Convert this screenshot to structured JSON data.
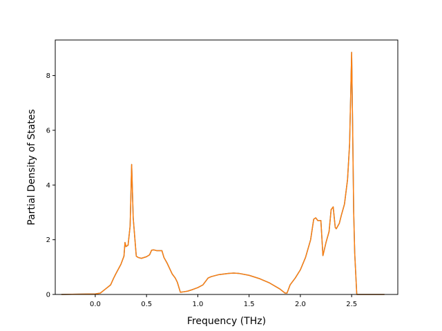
{
  "chart_data": {
    "type": "line",
    "title": "",
    "xlabel": "Frequency (THz)",
    "ylabel": "Partial Density of States",
    "xlim": [
      -0.39,
      2.95
    ],
    "ylim": [
      0,
      9.3
    ],
    "xticks": [
      0.0,
      0.5,
      1.0,
      1.5,
      2.0,
      2.5
    ],
    "xtick_labels": [
      "0.0",
      "0.5",
      "1.0",
      "1.5",
      "2.0",
      "2.5"
    ],
    "yticks": [
      0,
      2,
      4,
      6,
      8
    ],
    "ytick_labels": [
      "0",
      "2",
      "4",
      "6",
      "8"
    ],
    "grid": false,
    "legend": null,
    "series": [
      {
        "color": "#1f77b4",
        "x": [
          -0.33,
          0.0,
          0.05,
          0.1,
          0.15,
          0.18,
          0.2,
          0.25,
          0.28,
          0.29,
          0.3,
          0.32,
          0.34,
          0.355,
          0.37,
          0.4,
          0.42,
          0.45,
          0.5,
          0.53,
          0.55,
          0.57,
          0.6,
          0.65,
          0.67,
          0.7,
          0.75,
          0.78,
          0.8,
          0.83,
          0.85,
          0.9,
          0.95,
          1.0,
          1.05,
          1.08,
          1.1,
          1.13,
          1.2,
          1.3,
          1.35,
          1.4,
          1.5,
          1.6,
          1.7,
          1.8,
          1.85,
          1.87,
          1.9,
          1.95,
          2.0,
          2.05,
          2.1,
          2.13,
          2.15,
          2.17,
          2.2,
          2.22,
          2.25,
          2.28,
          2.3,
          2.32,
          2.34,
          2.35,
          2.38,
          2.4,
          2.43,
          2.46,
          2.48,
          2.5,
          2.51,
          2.52,
          2.53,
          2.55,
          2.57,
          2.62,
          2.82
        ],
        "y": [
          0.0,
          0.02,
          0.05,
          0.2,
          0.35,
          0.6,
          0.75,
          1.1,
          1.4,
          1.9,
          1.75,
          1.8,
          2.5,
          4.75,
          2.8,
          1.4,
          1.35,
          1.32,
          1.38,
          1.45,
          1.62,
          1.63,
          1.6,
          1.6,
          1.35,
          1.15,
          0.75,
          0.6,
          0.45,
          0.08,
          0.09,
          0.12,
          0.18,
          0.25,
          0.35,
          0.5,
          0.6,
          0.65,
          0.72,
          0.77,
          0.78,
          0.77,
          0.7,
          0.58,
          0.42,
          0.2,
          0.05,
          0.05,
          0.35,
          0.6,
          0.9,
          1.35,
          2.0,
          2.75,
          2.8,
          2.7,
          2.7,
          1.42,
          1.9,
          2.3,
          3.1,
          3.2,
          2.45,
          2.4,
          2.6,
          2.9,
          3.3,
          4.2,
          5.5,
          8.85,
          6.0,
          3.0,
          1.5,
          0.0,
          0.0,
          0.0,
          0.0
        ]
      },
      {
        "color": "#ff7f0e",
        "x": [
          -0.33,
          0.0,
          0.05,
          0.1,
          0.15,
          0.18,
          0.2,
          0.25,
          0.28,
          0.29,
          0.3,
          0.32,
          0.34,
          0.355,
          0.37,
          0.4,
          0.42,
          0.45,
          0.5,
          0.53,
          0.55,
          0.57,
          0.6,
          0.65,
          0.67,
          0.7,
          0.75,
          0.78,
          0.8,
          0.83,
          0.85,
          0.9,
          0.95,
          1.0,
          1.05,
          1.08,
          1.1,
          1.13,
          1.2,
          1.3,
          1.35,
          1.4,
          1.5,
          1.6,
          1.7,
          1.8,
          1.85,
          1.87,
          1.9,
          1.95,
          2.0,
          2.05,
          2.1,
          2.13,
          2.15,
          2.17,
          2.2,
          2.22,
          2.25,
          2.28,
          2.3,
          2.32,
          2.34,
          2.35,
          2.38,
          2.4,
          2.43,
          2.46,
          2.48,
          2.5,
          2.51,
          2.52,
          2.53,
          2.55,
          2.57,
          2.62,
          2.82
        ],
        "y": [
          0.0,
          0.02,
          0.05,
          0.2,
          0.35,
          0.6,
          0.75,
          1.1,
          1.4,
          1.9,
          1.75,
          1.8,
          2.5,
          4.75,
          2.8,
          1.4,
          1.35,
          1.32,
          1.38,
          1.45,
          1.62,
          1.63,
          1.6,
          1.6,
          1.35,
          1.15,
          0.75,
          0.6,
          0.45,
          0.08,
          0.09,
          0.12,
          0.18,
          0.25,
          0.35,
          0.5,
          0.6,
          0.65,
          0.72,
          0.77,
          0.78,
          0.77,
          0.7,
          0.58,
          0.42,
          0.2,
          0.05,
          0.05,
          0.35,
          0.6,
          0.9,
          1.35,
          2.0,
          2.75,
          2.8,
          2.7,
          2.7,
          1.42,
          1.9,
          2.3,
          3.1,
          3.2,
          2.45,
          2.4,
          2.6,
          2.9,
          3.3,
          4.2,
          5.5,
          8.85,
          6.0,
          3.0,
          1.5,
          0.0,
          0.0,
          0.0,
          0.0
        ]
      }
    ]
  }
}
